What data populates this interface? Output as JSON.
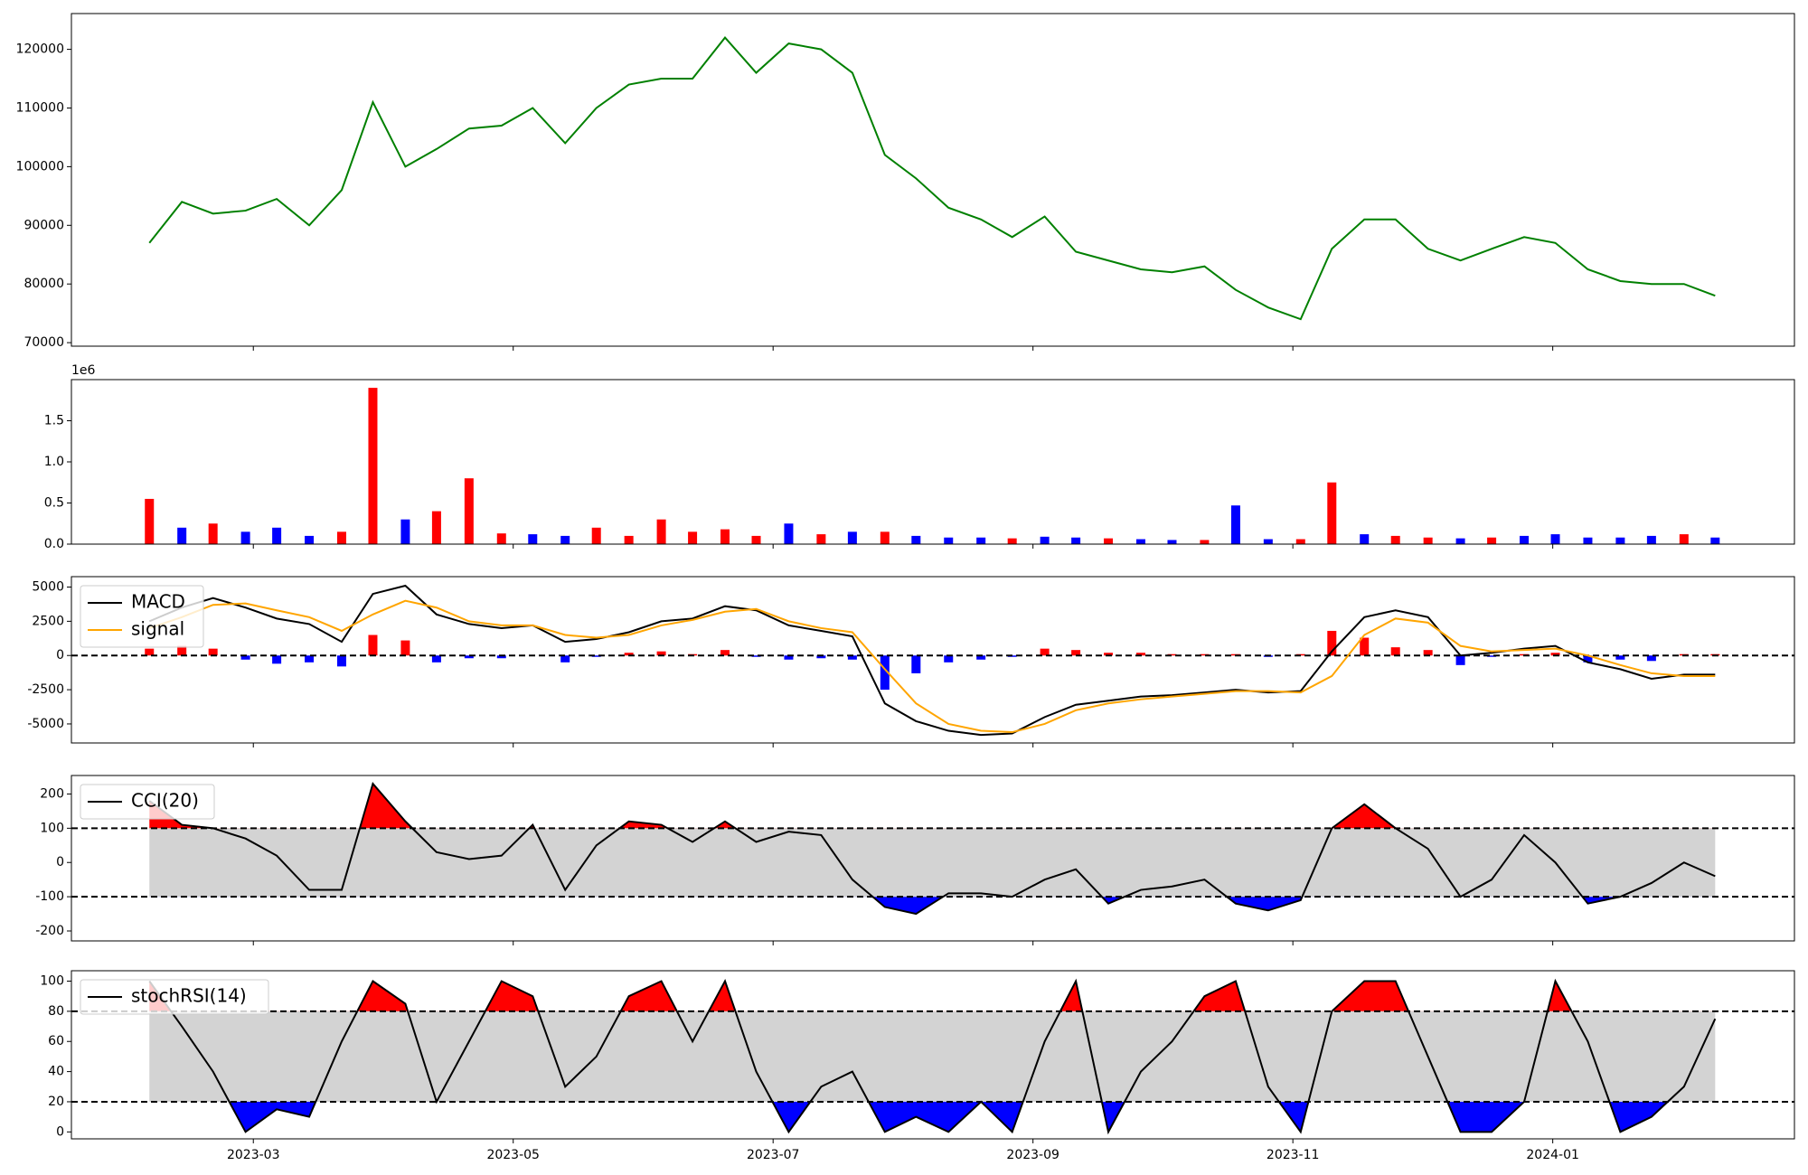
{
  "chart_data": [
    {
      "type": "line",
      "color": "green",
      "values": [
        87000,
        94000,
        92000,
        92500,
        94500,
        90000,
        96000,
        111000,
        100000,
        103000,
        106500,
        107000,
        110000,
        104000,
        110000,
        114000,
        115000,
        115000,
        122000,
        116000,
        121000,
        120000,
        116000,
        102000,
        98000,
        93000,
        91000,
        88000,
        91500,
        85500,
        84000,
        82500,
        82000,
        83000,
        79000,
        76000,
        74000,
        86000,
        91000,
        91000,
        86000,
        84000,
        86000,
        88000,
        87000,
        82500,
        80500,
        80000,
        80000,
        78000
      ],
      "ylim": [
        69400,
        126100
      ],
      "yticks": [
        70000,
        80000,
        90000,
        100000,
        110000,
        120000
      ]
    },
    {
      "type": "bar",
      "y_offset_label": "1e6",
      "values": [
        550000,
        200000,
        250000,
        150000,
        200000,
        100000,
        150000,
        1900000,
        300000,
        400000,
        800000,
        130000,
        120000,
        100000,
        200000,
        100000,
        300000,
        150000,
        180000,
        100000,
        250000,
        120000,
        150000,
        150000,
        100000,
        80000,
        80000,
        70000,
        90000,
        80000,
        70000,
        60000,
        50000,
        50000,
        470000,
        60000,
        60000,
        750000,
        120000,
        100000,
        80000,
        70000,
        80000,
        100000,
        120000,
        80000,
        80000,
        100000,
        120000,
        80000
      ],
      "colors": [
        "red",
        "blue",
        "red",
        "blue",
        "blue",
        "blue",
        "red",
        "red",
        "blue",
        "red",
        "red",
        "red",
        "blue",
        "blue",
        "red",
        "red",
        "red",
        "red",
        "red",
        "red",
        "blue",
        "red",
        "blue",
        "red",
        "blue",
        "blue",
        "blue",
        "red",
        "blue",
        "blue",
        "red",
        "blue",
        "blue",
        "red",
        "blue",
        "blue",
        "red",
        "red",
        "blue",
        "red",
        "red",
        "blue",
        "red",
        "blue",
        "blue",
        "blue",
        "blue",
        "blue",
        "red",
        "blue"
      ],
      "ylim": [
        0,
        2000000
      ],
      "yticks": [
        {
          "value": 0,
          "label": "0.0"
        },
        {
          "value": 500000,
          "label": "0.5"
        },
        {
          "value": 1000000,
          "label": "1.0"
        },
        {
          "value": 1500000,
          "label": "1.5"
        }
      ]
    },
    {
      "type": "line",
      "series": [
        {
          "name": "MACD",
          "color": "black",
          "values": [
            2500,
            3500,
            4200,
            3500,
            2700,
            2300,
            1000,
            4500,
            5100,
            3000,
            2300,
            2000,
            2200,
            1000,
            1200,
            1700,
            2500,
            2700,
            3600,
            3300,
            2200,
            1800,
            1400,
            -3500,
            -4800,
            -5500,
            -5800,
            -5700,
            -4500,
            -3600,
            -3300,
            -3000,
            -2900,
            -2700,
            -2500,
            -2700,
            -2600,
            300,
            2800,
            3300,
            2800,
            0,
            200,
            500,
            700,
            -500,
            -1000,
            -1700,
            -1400,
            -1400
          ]
        },
        {
          "name": "signal",
          "color": "orange",
          "values": [
            2000,
            2800,
            3700,
            3800,
            3300,
            2800,
            1800,
            3000,
            4000,
            3500,
            2500,
            2200,
            2200,
            1500,
            1300,
            1500,
            2200,
            2600,
            3200,
            3400,
            2500,
            2000,
            1700,
            -1000,
            -3500,
            -5000,
            -5500,
            -5600,
            -5000,
            -4000,
            -3500,
            -3200,
            -3000,
            -2800,
            -2600,
            -2600,
            -2700,
            -1500,
            1500,
            2700,
            2400,
            700,
            300,
            400,
            500,
            0,
            -700,
            -1300,
            -1500,
            -1500
          ]
        }
      ],
      "histogram": {
        "pos_color": "red",
        "neg_color": "blue",
        "values": [
          500,
          700,
          500,
          -300,
          -600,
          -500,
          -800,
          1500,
          1100,
          -500,
          -200,
          -200,
          0,
          -500,
          -100,
          200,
          300,
          100,
          400,
          -100,
          -300,
          -200,
          -300,
          -2500,
          -1300,
          -500,
          -300,
          -100,
          500,
          400,
          200,
          200,
          100,
          100,
          100,
          -100,
          100,
          1800,
          1300,
          600,
          400,
          -700,
          -100,
          100,
          200,
          -500,
          -300,
          -400,
          100,
          100
        ]
      },
      "reference_lines": [
        0
      ],
      "ylim": [
        -6390,
        5760
      ],
      "yticks": [
        -5000,
        -2500,
        0,
        2500,
        5000
      ]
    },
    {
      "type": "line",
      "series": [
        {
          "name": "CCI(20)",
          "color": "black",
          "values": [
            180,
            110,
            100,
            70,
            20,
            -80,
            -80,
            230,
            120,
            30,
            10,
            20,
            110,
            -80,
            50,
            120,
            110,
            60,
            120,
            60,
            90,
            80,
            -50,
            -130,
            -150,
            -90,
            -90,
            -100,
            -50,
            -20,
            -120,
            -80,
            -70,
            -50,
            -120,
            -140,
            -110,
            100,
            170,
            100,
            40,
            -100,
            -50,
            80,
            0,
            -120,
            -100,
            -60,
            0,
            -40
          ]
        }
      ],
      "reference_lines": [
        100,
        -100
      ],
      "band_color": "#d3d3d3",
      "above_color": "red",
      "below_color": "blue",
      "ylim": [
        -229,
        254
      ],
      "yticks": [
        -200,
        -100,
        0,
        100,
        200
      ]
    },
    {
      "type": "line",
      "series": [
        {
          "name": "stochRSI(14)",
          "color": "black",
          "values": [
            100,
            70,
            40,
            0,
            15,
            10,
            60,
            100,
            85,
            20,
            60,
            100,
            90,
            30,
            50,
            90,
            100,
            60,
            100,
            40,
            0,
            30,
            40,
            0,
            10,
            0,
            20,
            0,
            60,
            100,
            0,
            40,
            60,
            90,
            100,
            30,
            0,
            80,
            100,
            100,
            50,
            0,
            0,
            20,
            100,
            60,
            0,
            10,
            30,
            75
          ]
        }
      ],
      "reference_lines": [
        80,
        20
      ],
      "band_color": "#d3d3d3",
      "above_color": "red",
      "below_color": "blue",
      "ylim": [
        -4.6,
        106.9
      ],
      "yticks": [
        0,
        20,
        40,
        60,
        80,
        100
      ],
      "x": [
        2.2,
        2.45,
        2.69,
        2.94,
        3.18,
        3.43,
        3.68,
        3.92,
        4.17,
        4.41,
        4.66,
        4.91,
        5.15,
        5.4,
        5.64,
        5.89,
        6.14,
        6.38,
        6.63,
        6.87,
        7.12,
        7.37,
        7.61,
        7.86,
        8.1,
        8.35,
        8.6,
        8.84,
        9.09,
        9.33,
        9.58,
        9.83,
        10.07,
        10.32,
        10.56,
        10.81,
        11.06,
        11.3,
        11.55,
        11.79,
        12.04,
        12.29,
        12.53,
        12.78,
        13.02,
        13.27,
        13.52,
        13.76,
        14.01,
        14.25
      ],
      "xlim": [
        1.6,
        14.86
      ],
      "xticks": [
        {
          "value": 3,
          "label": "2023-03"
        },
        {
          "value": 5,
          "label": "2023-05"
        },
        {
          "value": 7,
          "label": "2023-07"
        },
        {
          "value": 9,
          "label": "2023-09"
        },
        {
          "value": 11,
          "label": "2023-11"
        },
        {
          "value": 13,
          "label": "2024-01"
        }
      ]
    }
  ]
}
